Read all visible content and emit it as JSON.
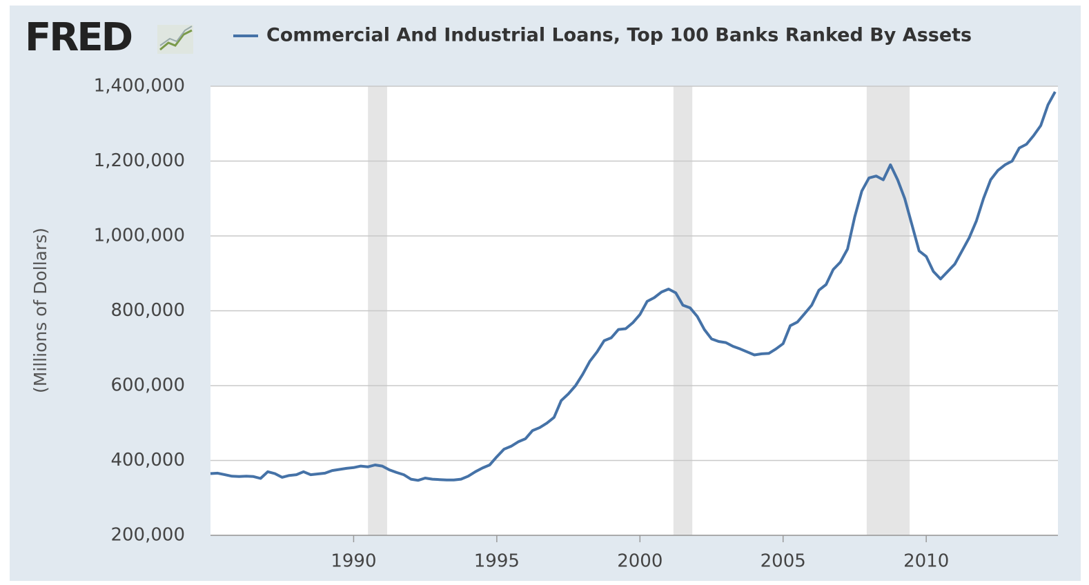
{
  "chart_data": {
    "type": "line",
    "logo": "FRED",
    "ylabel": "(Millions of Dollars)",
    "x": [
      1985,
      1985.25,
      1985.5,
      1985.75,
      1986,
      1986.25,
      1986.5,
      1986.75,
      1987,
      1987.25,
      1987.5,
      1987.75,
      1988,
      1988.25,
      1988.5,
      1988.75,
      1989,
      1989.25,
      1989.5,
      1989.75,
      1990,
      1990.25,
      1990.5,
      1990.75,
      1991,
      1991.25,
      1991.5,
      1991.75,
      1992,
      1992.25,
      1992.5,
      1992.75,
      1993,
      1993.25,
      1993.5,
      1993.75,
      1994,
      1994.25,
      1994.5,
      1994.75,
      1995,
      1995.25,
      1995.5,
      1995.75,
      1996,
      1996.25,
      1996.5,
      1996.75,
      1997,
      1997.25,
      1997.5,
      1997.75,
      1998,
      1998.25,
      1998.5,
      1998.75,
      1999,
      1999.25,
      1999.5,
      1999.75,
      2000,
      2000.25,
      2000.5,
      2000.75,
      2001,
      2001.25,
      2001.5,
      2001.75,
      2002,
      2002.25,
      2002.5,
      2002.75,
      2003,
      2003.25,
      2003.5,
      2003.75,
      2004,
      2004.25,
      2004.5,
      2004.75,
      2005,
      2005.25,
      2005.5,
      2005.75,
      2006,
      2006.25,
      2006.5,
      2006.75,
      2007,
      2007.25,
      2007.5,
      2007.75,
      2008,
      2008.25,
      2008.5,
      2008.75,
      2009,
      2009.25,
      2009.5,
      2009.75,
      2010,
      2010.25,
      2010.5,
      2010.75,
      2011,
      2011.25,
      2011.5,
      2011.75,
      2012,
      2012.25,
      2012.5,
      2012.75,
      2013,
      2013.25,
      2013.5,
      2013.75,
      2014,
      2014.25,
      2014.5
    ],
    "series": [
      {
        "name": "Commercial And Industrial Loans, Top 100 Banks Ranked By Assets",
        "color": "#4572a7",
        "values": [
          365000,
          366000,
          362000,
          358000,
          357000,
          358000,
          357000,
          352000,
          370000,
          365000,
          355000,
          360000,
          362000,
          370000,
          362000,
          364000,
          366000,
          373000,
          376000,
          379000,
          381000,
          385000,
          383000,
          388000,
          385000,
          375000,
          368000,
          362000,
          350000,
          347000,
          353000,
          350000,
          349000,
          348000,
          348000,
          350000,
          358000,
          370000,
          380000,
          388000,
          410000,
          430000,
          438000,
          450000,
          458000,
          480000,
          488000,
          500000,
          515000,
          560000,
          578000,
          600000,
          630000,
          665000,
          690000,
          720000,
          728000,
          750000,
          752000,
          768000,
          790000,
          825000,
          835000,
          850000,
          858000,
          848000,
          815000,
          808000,
          785000,
          750000,
          725000,
          718000,
          715000,
          705000,
          698000,
          690000,
          682000,
          685000,
          686000,
          698000,
          712000,
          760000,
          770000,
          792000,
          815000,
          855000,
          870000,
          910000,
          930000,
          965000,
          1050000,
          1120000,
          1155000,
          1160000,
          1150000,
          1190000,
          1150000,
          1100000,
          1030000,
          960000,
          945000,
          905000,
          885000,
          905000,
          925000,
          960000,
          995000,
          1040000,
          1100000,
          1150000,
          1175000,
          1190000,
          1200000,
          1235000,
          1245000,
          1268000,
          1295000,
          1350000,
          1385000
        ]
      }
    ],
    "recessions": [
      {
        "start": 1990.5,
        "end": 1991.17
      },
      {
        "start": 2001.17,
        "end": 2001.83
      },
      {
        "start": 2007.92,
        "end": 2009.42
      }
    ],
    "xlim": [
      1985,
      2014.6
    ],
    "xticks": [
      1990,
      1995,
      2000,
      2005,
      2010
    ],
    "ylim": [
      200000,
      1400000
    ],
    "yticks": [
      {
        "value": 200000,
        "label": "200,000"
      },
      {
        "value": 400000,
        "label": "400,000"
      },
      {
        "value": 600000,
        "label": "600,000"
      },
      {
        "value": 800000,
        "label": "800,000"
      },
      {
        "value": 1000000,
        "label": "1,000,000"
      },
      {
        "value": 1200000,
        "label": "1,200,000"
      },
      {
        "value": 1400000,
        "label": "1,400,000"
      }
    ],
    "grid": true
  }
}
